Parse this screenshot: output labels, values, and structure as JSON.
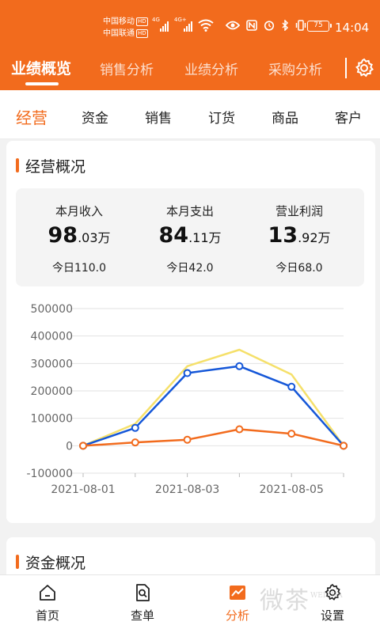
{
  "status_bar": {
    "carrier1": "中国移动",
    "carrier2": "中国联通",
    "hd": "HD",
    "sig1_label": "4G",
    "sig2_label": "4G+",
    "battery": "75",
    "time": "14:04"
  },
  "top_tabs": [
    {
      "label": "业绩概览"
    },
    {
      "label": "销售分析"
    },
    {
      "label": "业绩分析"
    },
    {
      "label": "采购分析"
    }
  ],
  "sub_tabs": [
    {
      "label": "经营"
    },
    {
      "label": "资金"
    },
    {
      "label": "销售"
    },
    {
      "label": "订货"
    },
    {
      "label": "商品"
    },
    {
      "label": "客户"
    }
  ],
  "overview": {
    "title": "经营概况",
    "stats": [
      {
        "label": "本月收入",
        "big": "98",
        "small": ".03万",
        "today": "今日110.0"
      },
      {
        "label": "本月支出",
        "big": "84",
        "small": ".11万",
        "today": "今日42.0"
      },
      {
        "label": "营业利润",
        "big": "13",
        "small": ".92万",
        "today": "今日68.0"
      }
    ]
  },
  "fund": {
    "title": "资金概况"
  },
  "chart_data": {
    "type": "line",
    "x": [
      "2021-08-01",
      "2021-08-02",
      "2021-08-03",
      "2021-08-04",
      "2021-08-05",
      "2021-08-06"
    ],
    "x_tick_labels": [
      "2021-08-01",
      "2021-08-03",
      "2021-08-05"
    ],
    "y_tick_labels": [
      "500000",
      "400000",
      "300000",
      "200000",
      "100000",
      "0",
      "-100000"
    ],
    "ylim": [
      -100000,
      500000
    ],
    "grid": true,
    "series": [
      {
        "values": [
          0,
          80000,
          290000,
          350000,
          260000,
          0
        ],
        "color": "#f5e06a",
        "markers": false
      },
      {
        "values": [
          0,
          65000,
          265000,
          290000,
          215000,
          0
        ],
        "color": "#1557d8",
        "markers": true
      },
      {
        "values": [
          0,
          12000,
          22000,
          60000,
          44000,
          0
        ],
        "color": "#f26b1d",
        "markers": true
      }
    ]
  },
  "bottom_nav": [
    {
      "label": "首页",
      "icon": "home-icon"
    },
    {
      "label": "查单",
      "icon": "search-doc-icon"
    },
    {
      "label": "分析",
      "icon": "analysis-icon"
    },
    {
      "label": "设置",
      "icon": "gear-icon"
    }
  ],
  "watermark": {
    "text": "微茶",
    "sub": "WEICHA"
  },
  "colors": {
    "accent": "#f26b1d"
  }
}
